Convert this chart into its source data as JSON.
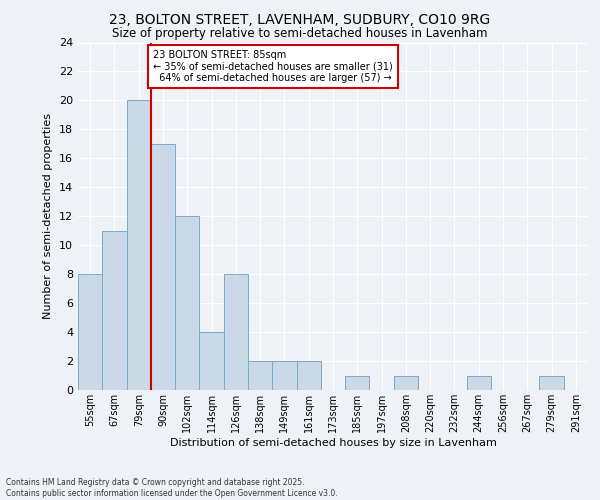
{
  "title1": "23, BOLTON STREET, LAVENHAM, SUDBURY, CO10 9RG",
  "title2": "Size of property relative to semi-detached houses in Lavenham",
  "xlabel": "Distribution of semi-detached houses by size in Lavenham",
  "ylabel": "Number of semi-detached properties",
  "footnote1": "Contains HM Land Registry data © Crown copyright and database right 2025.",
  "footnote2": "Contains public sector information licensed under the Open Government Licence v3.0.",
  "bin_labels": [
    "55sqm",
    "67sqm",
    "79sqm",
    "90sqm",
    "102sqm",
    "114sqm",
    "126sqm",
    "138sqm",
    "149sqm",
    "161sqm",
    "173sqm",
    "185sqm",
    "197sqm",
    "208sqm",
    "220sqm",
    "232sqm",
    "244sqm",
    "256sqm",
    "267sqm",
    "279sqm",
    "291sqm"
  ],
  "bar_values": [
    8,
    11,
    20,
    17,
    12,
    4,
    8,
    2,
    2,
    2,
    0,
    1,
    0,
    1,
    0,
    0,
    1,
    0,
    0,
    1,
    0
  ],
  "bar_color": "#c9d9e8",
  "bar_edge_color": "#7aaac8",
  "property_label": "23 BOLTON STREET: 85sqm",
  "pct_smaller": 35,
  "count_smaller": 31,
  "pct_larger": 64,
  "count_larger": 57,
  "annotation_box_color": "#ffffff",
  "annotation_box_edge": "#cc0000",
  "ylim": [
    0,
    24
  ],
  "yticks": [
    0,
    2,
    4,
    6,
    8,
    10,
    12,
    14,
    16,
    18,
    20,
    22,
    24
  ],
  "background_color": "#eef2f7",
  "grid_color": "#ffffff"
}
